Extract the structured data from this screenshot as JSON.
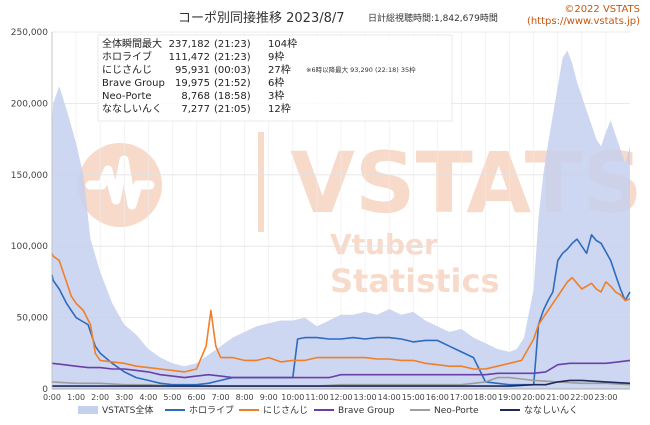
{
  "header": {
    "title": "コーポ別同接推移 2023/8/7",
    "total_watch": "日計総視聴時間:1,842,679時間",
    "copyright": "©2022 VSTATS",
    "url": "(https://www.vstats.jp)"
  },
  "watermark": {
    "brand": "VSTATS",
    "line1": "Vtuber",
    "line2": "Statistics"
  },
  "stats_table": {
    "rows": [
      {
        "name": "全体瞬間最大",
        "value": "237,182",
        "time": "(21:23)",
        "frames": "104枠"
      },
      {
        "name": "ホロライブ",
        "value": "111,472",
        "time": "(21:23)",
        "frames": "9枠"
      },
      {
        "name": "にじさんじ",
        "value": "95,931",
        "time": "(00:03)",
        "frames": "27枠"
      },
      {
        "name": "Brave Group",
        "value": "19,975",
        "time": "(21:52)",
        "frames": "6枠"
      },
      {
        "name": "Neo-Porte",
        "value": "8,768",
        "time": "(18:58)",
        "frames": "3枠"
      },
      {
        "name": "ななしいんく",
        "value": "7,277",
        "time": "(21:05)",
        "frames": "12枠"
      }
    ],
    "note": "※6時以降最大 93,290 (22:18) 35枠"
  },
  "chart_data": {
    "type": "area+line",
    "title": "コーポ別同接推移 2023/8/7",
    "xlabel": "",
    "ylabel": "",
    "ylim": [
      0,
      250000
    ],
    "yticks": [
      0,
      50000,
      100000,
      150000,
      200000,
      250000
    ],
    "ytick_labels": [
      "0",
      "50,000",
      "100,000",
      "150,000",
      "200,000",
      "250,000"
    ],
    "xlim": [
      0,
      24
    ],
    "xticks": [
      0,
      1,
      2,
      3,
      4,
      5,
      6,
      7,
      8,
      9,
      10,
      11,
      12,
      13,
      14,
      15,
      16,
      17,
      18,
      19,
      20,
      21,
      22,
      23
    ],
    "xtick_labels": [
      "0:00",
      "1:00",
      "2:00",
      "3:00",
      "4:00",
      "5:00",
      "6:00",
      "7:00",
      "8:00",
      "9:00",
      "10:00",
      "11:00",
      "12:00",
      "13:00",
      "14:00",
      "15:00",
      "16:00",
      "17:00",
      "18:00",
      "19:00",
      "20:00",
      "21:00",
      "22:00",
      "23:00"
    ],
    "grid": true,
    "legend_position": "bottom",
    "series": [
      {
        "name": "VSTATS全体",
        "kind": "area",
        "color": "#c5d0ef",
        "x": [
          0,
          0.05,
          0.3,
          0.6,
          1,
          1.3,
          1.6,
          2,
          2.5,
          3,
          3.5,
          4,
          4.5,
          5,
          5.5,
          6,
          6.5,
          7,
          7.5,
          8,
          8.5,
          9,
          9.5,
          10,
          10.5,
          11,
          11.5,
          12,
          12.5,
          13,
          13.5,
          14,
          14.5,
          15,
          15.5,
          16,
          16.5,
          17,
          17.5,
          18,
          18.5,
          19,
          19.3,
          19.6,
          20,
          20.2,
          20.4,
          20.6,
          20.8,
          21,
          21.2,
          21.4,
          21.6,
          21.8,
          22,
          22.2,
          22.4,
          22.6,
          22.8,
          23,
          23.2,
          23.4,
          23.6,
          23.8,
          24
        ],
        "values": [
          185000,
          200000,
          212000,
          196000,
          172000,
          150000,
          105000,
          82000,
          60000,
          45000,
          38000,
          28000,
          22000,
          18000,
          16000,
          18000,
          24000,
          30000,
          36000,
          40000,
          44000,
          46000,
          48000,
          48000,
          50000,
          44000,
          48000,
          52000,
          52000,
          54000,
          52000,
          56000,
          52000,
          54000,
          48000,
          44000,
          40000,
          42000,
          36000,
          32000,
          28000,
          26000,
          28000,
          36000,
          70000,
          120000,
          150000,
          172000,
          192000,
          212000,
          232000,
          237000,
          228000,
          215000,
          205000,
          195000,
          185000,
          175000,
          170000,
          180000,
          188000,
          178000,
          168000,
          158000,
          170000
        ]
      },
      {
        "name": "ホロライブ",
        "kind": "line",
        "color": "#2e6bbf",
        "x": [
          0,
          0.05,
          0.3,
          0.6,
          0.8,
          1,
          1.2,
          1.5,
          1.8,
          2,
          2.5,
          3,
          3.5,
          4,
          4.5,
          5,
          5.5,
          6,
          6.5,
          7,
          7.5,
          8,
          8.5,
          9,
          9.5,
          10,
          10.2,
          10.5,
          11,
          11.5,
          12,
          12.5,
          13,
          13.5,
          14,
          14.5,
          15,
          15.5,
          16,
          16.5,
          17,
          17.5,
          18,
          18.5,
          19,
          19.5,
          20,
          20.2,
          20.4,
          20.6,
          20.8,
          21,
          21.2,
          21.4,
          21.6,
          21.8,
          22,
          22.2,
          22.4,
          22.6,
          22.8,
          23,
          23.2,
          23.4,
          23.6,
          23.8,
          24
        ],
        "values": [
          80000,
          76000,
          70000,
          60000,
          55000,
          50000,
          48000,
          45000,
          30000,
          25000,
          18000,
          12000,
          8000,
          6000,
          4000,
          3000,
          3000,
          3000,
          4000,
          6000,
          8000,
          8000,
          8000,
          8000,
          8000,
          8000,
          35000,
          36000,
          36000,
          35000,
          35000,
          36000,
          35000,
          36000,
          36000,
          35000,
          33000,
          34000,
          34000,
          30000,
          26000,
          22000,
          5000,
          4000,
          3000,
          3000,
          3000,
          45000,
          55000,
          62000,
          68000,
          90000,
          95000,
          98000,
          102000,
          105000,
          100000,
          95000,
          108000,
          104000,
          102000,
          96000,
          90000,
          80000,
          70000,
          62000,
          68000
        ]
      },
      {
        "name": "にじさんじ",
        "kind": "line",
        "color": "#f07f28",
        "x": [
          0,
          0.05,
          0.3,
          0.6,
          0.8,
          1,
          1.3,
          1.6,
          1.8,
          2,
          2.5,
          3,
          3.5,
          4,
          4.5,
          5,
          5.5,
          6,
          6.4,
          6.6,
          6.8,
          7,
          7.5,
          8,
          8.5,
          9,
          9.5,
          10,
          10.5,
          11,
          11.5,
          12,
          12.5,
          13,
          13.5,
          14,
          14.5,
          15,
          15.5,
          16,
          16.5,
          17,
          17.5,
          18,
          18.5,
          19,
          19.5,
          20,
          20.2,
          20.4,
          20.6,
          20.8,
          21,
          21.2,
          21.4,
          21.6,
          21.8,
          22,
          22.2,
          22.4,
          22.6,
          22.8,
          23,
          23.2,
          23.4,
          23.6,
          23.8,
          24
        ],
        "values": [
          95000,
          93000,
          90000,
          75000,
          65000,
          60000,
          55000,
          45000,
          25000,
          20000,
          19000,
          18000,
          16000,
          15000,
          14000,
          13000,
          12000,
          14000,
          30000,
          55000,
          30000,
          22000,
          22000,
          20000,
          20000,
          22000,
          19000,
          20000,
          20000,
          22000,
          22000,
          22000,
          22000,
          22000,
          21000,
          21000,
          20000,
          20000,
          18000,
          17000,
          16000,
          16000,
          14000,
          14000,
          16000,
          18000,
          20000,
          35000,
          45000,
          50000,
          55000,
          60000,
          65000,
          70000,
          75000,
          78000,
          74000,
          70000,
          72000,
          74000,
          70000,
          68000,
          75000,
          72000,
          68000,
          66000,
          62000,
          63000
        ]
      },
      {
        "name": "Brave Group",
        "kind": "line",
        "color": "#6b3fa8",
        "x": [
          0,
          0.5,
          1,
          1.5,
          2,
          2.5,
          3,
          3.5,
          4,
          4.5,
          5,
          5.5,
          6,
          6.5,
          7,
          7.5,
          8,
          8.5,
          9,
          9.5,
          10,
          10.5,
          11,
          11.5,
          12,
          12.5,
          13,
          13.5,
          14,
          14.5,
          15,
          15.5,
          16,
          16.5,
          17,
          17.5,
          18,
          18.5,
          19,
          19.5,
          20,
          20.5,
          21,
          21.5,
          22,
          22.5,
          23,
          23.5,
          24
        ],
        "values": [
          18000,
          17000,
          16000,
          15000,
          15000,
          14000,
          14000,
          13000,
          12000,
          10000,
          9000,
          8000,
          9000,
          10000,
          9000,
          8000,
          8000,
          8000,
          8000,
          8000,
          8000,
          8000,
          8000,
          8000,
          10000,
          10000,
          10000,
          10000,
          10000,
          10000,
          10000,
          10000,
          10000,
          10000,
          10000,
          10000,
          10000,
          11000,
          11000,
          11000,
          11000,
          12000,
          17000,
          18000,
          18000,
          18000,
          18000,
          19000,
          20000
        ]
      },
      {
        "name": "Neo-Porte",
        "kind": "line",
        "color": "#9e9e9e",
        "x": [
          0,
          1,
          2,
          3,
          4,
          5,
          6,
          7,
          8,
          9,
          10,
          11,
          12,
          13,
          14,
          15,
          16,
          17,
          17.5,
          18,
          18.5,
          19,
          19.5,
          20,
          21,
          22,
          23,
          24
        ],
        "values": [
          5000,
          4000,
          4000,
          3000,
          3000,
          2000,
          2000,
          2000,
          2000,
          2000,
          2000,
          2000,
          3000,
          3000,
          3000,
          3000,
          3000,
          3000,
          4000,
          5000,
          8000,
          8000,
          7000,
          6000,
          5000,
          4000,
          4000,
          3000
        ]
      },
      {
        "name": "ななしいんく",
        "kind": "line",
        "color": "#1e2a5a",
        "x": [
          0,
          1,
          2,
          3,
          4,
          5,
          6,
          7,
          8,
          9,
          10,
          11,
          12,
          13,
          14,
          15,
          16,
          17,
          18,
          19,
          20,
          20.5,
          21,
          21.5,
          22,
          23,
          24
        ],
        "values": [
          2000,
          2000,
          2000,
          2000,
          2000,
          2000,
          2000,
          2000,
          2000,
          2000,
          2000,
          2000,
          2000,
          2000,
          2000,
          2000,
          2000,
          2000,
          2000,
          2000,
          3000,
          3000,
          5000,
          6000,
          6000,
          5000,
          4000
        ]
      }
    ]
  }
}
